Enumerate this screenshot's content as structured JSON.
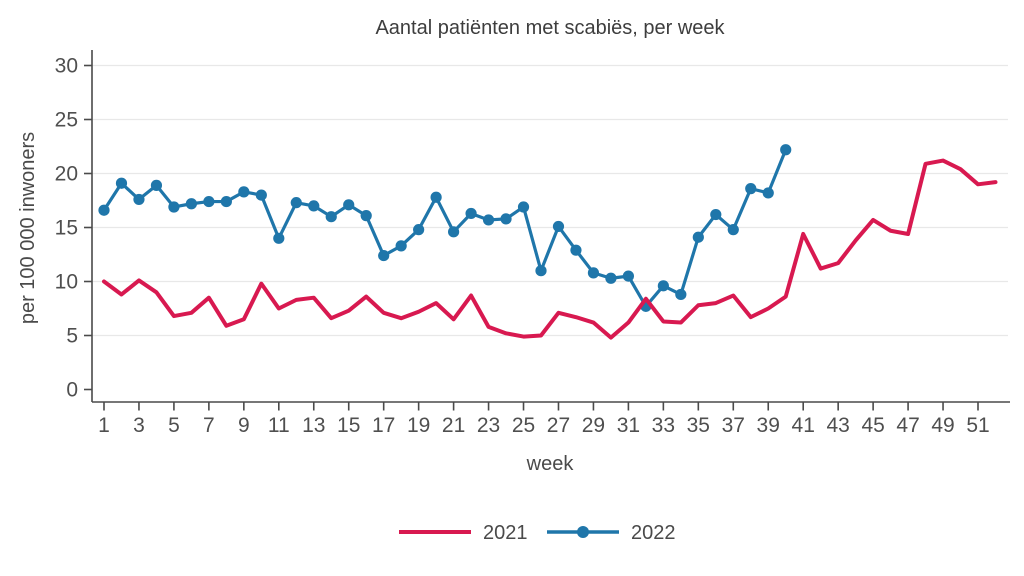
{
  "title": "Aantal patiënten met scabiës, per week",
  "colors": {
    "series_2021": "#d81950",
    "series_2022": "#1f76aa",
    "grid": "#e8e8e8",
    "axis": "#4a4a4a",
    "text": "#4d4d4d"
  },
  "chart_data": {
    "type": "line",
    "title": "Aantal patiënten met scabiës, per week",
    "xlabel": "week",
    "ylabel": "per 100 000 inwoners",
    "ylim": [
      0,
      30
    ],
    "xlim": [
      1,
      52
    ],
    "y_ticks": [
      0,
      5,
      10,
      15,
      20,
      25,
      30
    ],
    "x_ticks": [
      1,
      3,
      5,
      7,
      9,
      11,
      13,
      15,
      17,
      19,
      21,
      23,
      25,
      27,
      29,
      31,
      33,
      35,
      37,
      39,
      41,
      43,
      45,
      47,
      49,
      51
    ],
    "grid": "horizontal",
    "legend_position": "bottom-center",
    "series": [
      {
        "name": "2021",
        "color": "#d81950",
        "marker": "none",
        "weeks": [
          1,
          2,
          3,
          4,
          5,
          6,
          7,
          8,
          9,
          10,
          11,
          12,
          13,
          14,
          15,
          16,
          17,
          18,
          19,
          20,
          21,
          22,
          23,
          24,
          25,
          26,
          27,
          28,
          29,
          30,
          31,
          32,
          33,
          34,
          35,
          36,
          37,
          38,
          39,
          40,
          41,
          42,
          43,
          44,
          45,
          46,
          47,
          48,
          49,
          50,
          51,
          52
        ],
        "values": [
          10.0,
          8.8,
          10.1,
          9.0,
          6.8,
          7.1,
          8.5,
          5.9,
          6.5,
          9.8,
          7.5,
          8.3,
          8.5,
          6.6,
          7.3,
          8.6,
          7.1,
          6.6,
          7.2,
          8.0,
          6.5,
          8.7,
          5.8,
          5.2,
          4.9,
          5.0,
          7.1,
          6.7,
          6.2,
          4.8,
          6.2,
          8.4,
          6.3,
          6.2,
          7.8,
          8.0,
          8.7,
          6.7,
          7.5,
          8.6,
          14.4,
          11.2,
          11.7,
          13.8,
          15.7,
          14.7,
          14.4,
          20.9,
          21.2,
          20.4,
          19.0,
          19.2
        ]
      },
      {
        "name": "2022",
        "color": "#1f76aa",
        "marker": "circle",
        "weeks": [
          1,
          2,
          3,
          4,
          5,
          6,
          7,
          8,
          9,
          10,
          11,
          12,
          13,
          14,
          15,
          16,
          17,
          18,
          19,
          20,
          21,
          22,
          23,
          24,
          25,
          26,
          27,
          28,
          29,
          30,
          31,
          32,
          33,
          34,
          35,
          36,
          37,
          38,
          39,
          40
        ],
        "values": [
          16.6,
          19.1,
          17.6,
          18.9,
          16.9,
          17.2,
          17.4,
          17.4,
          18.3,
          18.0,
          14.0,
          17.3,
          17.0,
          16.0,
          17.1,
          16.1,
          12.4,
          13.3,
          14.8,
          17.8,
          14.6,
          16.3,
          15.7,
          15.8,
          16.9,
          11.0,
          15.1,
          12.9,
          10.8,
          10.3,
          10.5,
          7.7,
          9.6,
          8.8,
          14.1,
          16.2,
          14.8,
          18.6,
          18.2,
          22.2
        ]
      }
    ]
  }
}
